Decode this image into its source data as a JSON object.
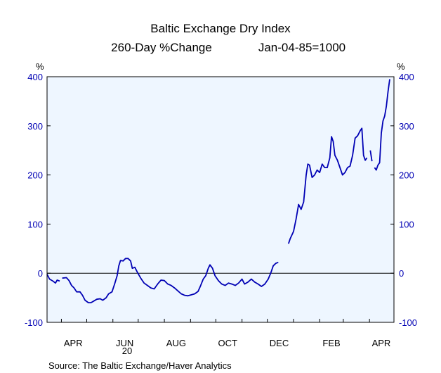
{
  "colors": {
    "plot_background": "#eef6ff",
    "line": "#0000b4",
    "axis_labels": "#0000b4",
    "frame": "#000000"
  },
  "chart_data": {
    "type": "line",
    "title": "Baltic Exchange Dry Index",
    "subtitle_left": "260-Day %Change",
    "subtitle_right": "Jan-04-85=1000",
    "y_unit_left": "%",
    "y_unit_right": "%",
    "ylim": [
      -100,
      400
    ],
    "yticks": [
      -100,
      0,
      100,
      200,
      300,
      400
    ],
    "ytick_labels": [
      "-100",
      "0",
      "100",
      "200",
      "300",
      "400"
    ],
    "xlim": [
      "2020-03-15",
      "2021-04-30"
    ],
    "x_tick_labels": [
      {
        "label": "APR",
        "date": "2020-04-15"
      },
      {
        "label": "JUN",
        "date": "2020-06-15"
      },
      {
        "label": "AUG",
        "date": "2020-08-15"
      },
      {
        "label": "OCT",
        "date": "2020-10-15"
      },
      {
        "label": "DEC",
        "date": "2020-12-15"
      },
      {
        "label": "FEB",
        "date": "2021-02-15"
      },
      {
        "label": "APR",
        "date": "2021-04-15"
      }
    ],
    "year_label": "20",
    "grid": false,
    "zero_line": true,
    "source": "Source:  The Baltic Exchange/Haver Analytics",
    "series": [
      {
        "segments": [
          [
            [
              "2020-03-15",
              -2
            ],
            [
              "2020-03-18",
              -12
            ],
            [
              "2020-03-22",
              -16
            ],
            [
              "2020-03-25",
              -20
            ],
            [
              "2020-03-27",
              -14
            ],
            [
              "2020-03-30",
              -16
            ]
          ],
          [
            [
              "2020-04-02",
              -10
            ],
            [
              "2020-04-07",
              -9
            ],
            [
              "2020-04-10",
              -15
            ],
            [
              "2020-04-13",
              -25
            ],
            [
              "2020-04-16",
              -30
            ],
            [
              "2020-04-19",
              -38
            ],
            [
              "2020-04-23",
              -38
            ],
            [
              "2020-04-26",
              -45
            ],
            [
              "2020-04-29",
              -55
            ],
            [
              "2020-05-03",
              -60
            ],
            [
              "2020-05-06",
              -60
            ],
            [
              "2020-05-10",
              -56
            ],
            [
              "2020-05-13",
              -53
            ],
            [
              "2020-05-17",
              -52
            ],
            [
              "2020-05-20",
              -55
            ],
            [
              "2020-05-24",
              -50
            ],
            [
              "2020-05-27",
              -42
            ],
            [
              "2020-05-31",
              -38
            ],
            [
              "2020-06-03",
              -22
            ],
            [
              "2020-06-06",
              -5
            ],
            [
              "2020-06-08",
              15
            ],
            [
              "2020-06-10",
              26
            ],
            [
              "2020-06-13",
              25
            ],
            [
              "2020-06-16",
              30
            ],
            [
              "2020-06-19",
              30
            ],
            [
              "2020-06-22",
              25
            ],
            [
              "2020-06-24",
              10
            ],
            [
              "2020-06-27",
              12
            ],
            [
              "2020-06-30",
              2
            ],
            [
              "2020-07-04",
              -10
            ],
            [
              "2020-07-08",
              -20
            ],
            [
              "2020-07-12",
              -25
            ],
            [
              "2020-07-16",
              -30
            ],
            [
              "2020-07-20",
              -32
            ],
            [
              "2020-07-24",
              -22
            ],
            [
              "2020-07-28",
              -14
            ],
            [
              "2020-08-01",
              -15
            ],
            [
              "2020-08-05",
              -22
            ],
            [
              "2020-08-09",
              -25
            ],
            [
              "2020-08-13",
              -30
            ],
            [
              "2020-08-17",
              -36
            ],
            [
              "2020-08-21",
              -42
            ],
            [
              "2020-08-25",
              -45
            ],
            [
              "2020-08-29",
              -46
            ],
            [
              "2020-09-02",
              -44
            ],
            [
              "2020-09-06",
              -42
            ],
            [
              "2020-09-10",
              -37
            ],
            [
              "2020-09-13",
              -25
            ],
            [
              "2020-09-16",
              -12
            ],
            [
              "2020-09-19",
              -5
            ],
            [
              "2020-09-22",
              10
            ],
            [
              "2020-09-24",
              17
            ],
            [
              "2020-09-27",
              10
            ],
            [
              "2020-09-30",
              -5
            ],
            [
              "2020-10-04",
              -15
            ],
            [
              "2020-10-08",
              -22
            ],
            [
              "2020-10-12",
              -25
            ],
            [
              "2020-10-16",
              -20
            ],
            [
              "2020-10-20",
              -22
            ],
            [
              "2020-10-24",
              -25
            ],
            [
              "2020-10-28",
              -20
            ],
            [
              "2020-11-01",
              -12
            ],
            [
              "2020-11-04",
              -22
            ],
            [
              "2020-11-08",
              -18
            ],
            [
              "2020-11-12",
              -12
            ],
            [
              "2020-11-16",
              -18
            ],
            [
              "2020-11-20",
              -22
            ],
            [
              "2020-11-24",
              -27
            ],
            [
              "2020-11-28",
              -22
            ],
            [
              "2020-12-02",
              -12
            ],
            [
              "2020-12-05",
              0
            ],
            [
              "2020-12-08",
              15
            ],
            [
              "2020-12-11",
              20
            ],
            [
              "2020-12-14",
              22
            ]
          ],
          [
            [
              "2020-12-26",
              60
            ],
            [
              "2020-12-28",
              70
            ],
            [
              "2021-01-01",
              85
            ],
            [
              "2021-01-04",
              110
            ],
            [
              "2021-01-07",
              140
            ],
            [
              "2021-01-10",
              130
            ],
            [
              "2021-01-13",
              145
            ],
            [
              "2021-01-16",
              200
            ],
            [
              "2021-01-18",
              222
            ],
            [
              "2021-01-20",
              220
            ],
            [
              "2021-01-23",
              195
            ],
            [
              "2021-01-26",
              200
            ],
            [
              "2021-01-29",
              210
            ],
            [
              "2021-02-01",
              205
            ],
            [
              "2021-02-04",
              222
            ],
            [
              "2021-02-07",
              215
            ],
            [
              "2021-02-10",
              215
            ],
            [
              "2021-02-13",
              235
            ],
            [
              "2021-02-15",
              278
            ],
            [
              "2021-02-17",
              268
            ],
            [
              "2021-02-19",
              240
            ],
            [
              "2021-02-22",
              230
            ],
            [
              "2021-02-25",
              215
            ],
            [
              "2021-02-28",
              200
            ],
            [
              "2021-03-03",
              205
            ],
            [
              "2021-03-06",
              215
            ],
            [
              "2021-03-09",
              218
            ],
            [
              "2021-03-12",
              240
            ],
            [
              "2021-03-15",
              275
            ],
            [
              "2021-03-18",
              280
            ],
            [
              "2021-03-21",
              290
            ],
            [
              "2021-03-23",
              295
            ],
            [
              "2021-03-25",
              240
            ],
            [
              "2021-03-27",
              230
            ],
            [
              "2021-03-29",
              235
            ]
          ],
          [
            [
              "2021-04-02",
              250
            ],
            [
              "2021-04-04",
              228
            ]
          ],
          [
            [
              "2021-04-07",
              215
            ],
            [
              "2021-04-09",
              210
            ],
            [
              "2021-04-11",
              220
            ],
            [
              "2021-04-13",
              225
            ],
            [
              "2021-04-15",
              285
            ],
            [
              "2021-04-17",
              310
            ],
            [
              "2021-04-19",
              320
            ],
            [
              "2021-04-21",
              340
            ],
            [
              "2021-04-23",
              370
            ],
            [
              "2021-04-25",
              395
            ]
          ]
        ]
      }
    ]
  }
}
